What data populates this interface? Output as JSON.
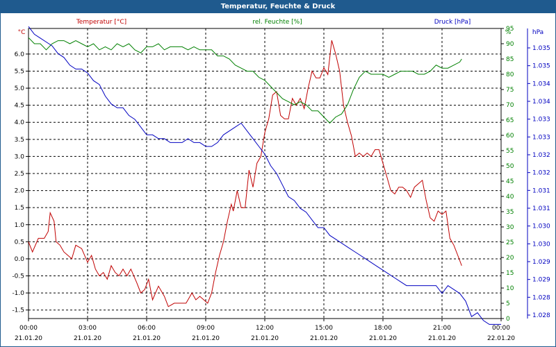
{
  "window": {
    "title": "Temperatur, Feuchte & Druck"
  },
  "chart_data": {
    "type": "line",
    "title": "Temperatur, Feuchte & Druck",
    "grid": true,
    "x_labels": [
      {
        "time": "00:00",
        "date": "21.01.20"
      },
      {
        "time": "03:00",
        "date": "21.01.20"
      },
      {
        "time": "06:00",
        "date": "21.01.20"
      },
      {
        "time": "09:00",
        "date": "21.01.20"
      },
      {
        "time": "12:00",
        "date": "21.01.20"
      },
      {
        "time": "15:00",
        "date": "21.01.20"
      },
      {
        "time": "18:00",
        "date": "21.01.20"
      },
      {
        "time": "21:00",
        "date": "21.01.20"
      },
      {
        "time": "00:00",
        "date": "22.01.20"
      }
    ],
    "x_range_hours": [
      0,
      24
    ],
    "axes": {
      "left": {
        "label": "°C",
        "color": "#c00000",
        "min": -1.75,
        "max": 6.75,
        "ticks": [
          "-1.5",
          "-1.0",
          "-0.5",
          "0.0",
          "0.5",
          "1.0",
          "1.5",
          "2.0",
          "2.5",
          "3.0",
          "3.5",
          "4.0",
          "4.5",
          "5.0",
          "5.5",
          "6.0"
        ]
      },
      "right1": {
        "label": "%",
        "color": "#008000",
        "min": 0,
        "max": 95,
        "ticks": [
          "0",
          "5",
          "10",
          "15",
          "20",
          "25",
          "30",
          "35",
          "40",
          "45",
          "50",
          "55",
          "60",
          "65",
          "70",
          "75",
          "80",
          "85",
          "90",
          "95"
        ]
      },
      "right2": {
        "label": "hPa",
        "color": "#0000c0",
        "min": 1027.75,
        "max": 1035.25,
        "ticks": [
          "1.028",
          "1.028",
          "1.029",
          "1.029",
          "1.030",
          "1.030",
          "1.031",
          "1.031",
          "1.032",
          "1.032",
          "1.033",
          "1.033",
          "1.034",
          "1.034",
          "1.035",
          "1.035"
        ]
      }
    },
    "series": [
      {
        "name": "Temperatur [°C]",
        "axis": "left",
        "color": "#c00000",
        "points": [
          [
            0,
            0.5
          ],
          [
            0.2,
            0.2
          ],
          [
            0.5,
            0.6
          ],
          [
            0.8,
            0.6
          ],
          [
            1.0,
            0.8
          ],
          [
            1.1,
            1.35
          ],
          [
            1.3,
            1.1
          ],
          [
            1.4,
            0.5
          ],
          [
            1.6,
            0.4
          ],
          [
            1.8,
            0.2
          ],
          [
            2.0,
            0.1
          ],
          [
            2.2,
            0.0
          ],
          [
            2.4,
            0.4
          ],
          [
            2.7,
            0.3
          ],
          [
            3.0,
            -0.1
          ],
          [
            3.2,
            0.1
          ],
          [
            3.4,
            -0.3
          ],
          [
            3.6,
            -0.5
          ],
          [
            3.8,
            -0.4
          ],
          [
            4.0,
            -0.6
          ],
          [
            4.2,
            -0.2
          ],
          [
            4.4,
            -0.4
          ],
          [
            4.6,
            -0.5
          ],
          [
            4.8,
            -0.3
          ],
          [
            5.0,
            -0.5
          ],
          [
            5.2,
            -0.3
          ],
          [
            5.5,
            -0.7
          ],
          [
            5.7,
            -1.0
          ],
          [
            5.9,
            -0.9
          ],
          [
            6.1,
            -0.6
          ],
          [
            6.3,
            -1.2
          ],
          [
            6.6,
            -0.8
          ],
          [
            6.9,
            -1.1
          ],
          [
            7.1,
            -1.4
          ],
          [
            7.4,
            -1.3
          ],
          [
            7.7,
            -1.3
          ],
          [
            8.0,
            -1.3
          ],
          [
            8.3,
            -1.0
          ],
          [
            8.5,
            -1.2
          ],
          [
            8.7,
            -1.1
          ],
          [
            8.9,
            -1.2
          ],
          [
            9.1,
            -1.3
          ],
          [
            9.3,
            -1.0
          ],
          [
            9.5,
            -0.4
          ],
          [
            9.7,
            0.1
          ],
          [
            9.9,
            0.5
          ],
          [
            10.1,
            1.1
          ],
          [
            10.3,
            1.6
          ],
          [
            10.4,
            1.4
          ],
          [
            10.6,
            2.0
          ],
          [
            10.8,
            1.5
          ],
          [
            11.0,
            1.5
          ],
          [
            11.2,
            2.6
          ],
          [
            11.4,
            2.1
          ],
          [
            11.6,
            2.8
          ],
          [
            11.8,
            3.0
          ],
          [
            12.0,
            3.7
          ],
          [
            12.2,
            4.1
          ],
          [
            12.4,
            4.8
          ],
          [
            12.6,
            4.9
          ],
          [
            12.8,
            4.2
          ],
          [
            13.0,
            4.1
          ],
          [
            13.2,
            4.1
          ],
          [
            13.4,
            4.7
          ],
          [
            13.6,
            4.5
          ],
          [
            13.8,
            4.7
          ],
          [
            14.0,
            4.4
          ],
          [
            14.2,
            5.0
          ],
          [
            14.4,
            5.5
          ],
          [
            14.6,
            5.3
          ],
          [
            14.8,
            5.3
          ],
          [
            15.0,
            5.6
          ],
          [
            15.2,
            5.4
          ],
          [
            15.4,
            6.4
          ],
          [
            15.6,
            6.0
          ],
          [
            15.8,
            5.5
          ],
          [
            16.0,
            4.5
          ],
          [
            16.2,
            4.0
          ],
          [
            16.4,
            3.6
          ],
          [
            16.6,
            3.0
          ],
          [
            16.8,
            3.1
          ],
          [
            17.0,
            3.0
          ],
          [
            17.2,
            3.1
          ],
          [
            17.4,
            3.0
          ],
          [
            17.6,
            3.2
          ],
          [
            17.8,
            3.2
          ],
          [
            18.0,
            2.8
          ],
          [
            18.2,
            2.4
          ],
          [
            18.4,
            2.0
          ],
          [
            18.6,
            1.9
          ],
          [
            18.8,
            2.1
          ],
          [
            19.0,
            2.1
          ],
          [
            19.2,
            2.0
          ],
          [
            19.4,
            1.8
          ],
          [
            19.6,
            2.1
          ],
          [
            19.8,
            2.2
          ],
          [
            20.0,
            2.3
          ],
          [
            20.2,
            1.7
          ],
          [
            20.4,
            1.2
          ],
          [
            20.6,
            1.1
          ],
          [
            20.8,
            1.4
          ],
          [
            21.0,
            1.3
          ],
          [
            21.2,
            1.4
          ],
          [
            21.4,
            0.6
          ],
          [
            21.6,
            0.4
          ],
          [
            21.8,
            0.1
          ],
          [
            22.0,
            -0.2
          ]
        ]
      },
      {
        "name": "rel. Feuchte [%]",
        "axis": "right1",
        "color": "#008000",
        "points": [
          [
            0,
            92
          ],
          [
            0.3,
            90
          ],
          [
            0.6,
            90
          ],
          [
            0.9,
            88
          ],
          [
            1.2,
            90
          ],
          [
            1.5,
            91
          ],
          [
            1.8,
            91
          ],
          [
            2.1,
            90
          ],
          [
            2.4,
            91
          ],
          [
            2.7,
            90
          ],
          [
            3.0,
            89
          ],
          [
            3.3,
            90
          ],
          [
            3.6,
            88
          ],
          [
            3.9,
            89
          ],
          [
            4.2,
            88
          ],
          [
            4.5,
            90
          ],
          [
            4.8,
            89
          ],
          [
            5.1,
            90
          ],
          [
            5.4,
            88
          ],
          [
            5.7,
            87
          ],
          [
            6.0,
            89
          ],
          [
            6.3,
            89
          ],
          [
            6.6,
            90
          ],
          [
            6.9,
            88
          ],
          [
            7.2,
            89
          ],
          [
            7.5,
            89
          ],
          [
            7.8,
            89
          ],
          [
            8.1,
            88
          ],
          [
            8.4,
            89
          ],
          [
            8.7,
            88
          ],
          [
            9.0,
            88
          ],
          [
            9.3,
            88
          ],
          [
            9.6,
            86
          ],
          [
            9.9,
            86
          ],
          [
            10.2,
            85
          ],
          [
            10.5,
            83
          ],
          [
            10.8,
            82
          ],
          [
            11.1,
            81
          ],
          [
            11.4,
            81
          ],
          [
            11.7,
            79
          ],
          [
            12.0,
            78
          ],
          [
            12.3,
            76
          ],
          [
            12.6,
            74
          ],
          [
            12.9,
            72
          ],
          [
            13.2,
            71
          ],
          [
            13.5,
            70
          ],
          [
            13.8,
            71
          ],
          [
            14.1,
            70
          ],
          [
            14.4,
            68
          ],
          [
            14.7,
            68
          ],
          [
            15.0,
            66
          ],
          [
            15.3,
            64
          ],
          [
            15.6,
            66
          ],
          [
            15.9,
            67
          ],
          [
            16.2,
            70
          ],
          [
            16.5,
            75
          ],
          [
            16.8,
            79
          ],
          [
            17.1,
            81
          ],
          [
            17.4,
            80
          ],
          [
            17.7,
            80
          ],
          [
            18.0,
            80
          ],
          [
            18.3,
            79
          ],
          [
            18.6,
            80
          ],
          [
            18.9,
            81
          ],
          [
            19.2,
            81
          ],
          [
            19.5,
            81
          ],
          [
            19.8,
            80
          ],
          [
            20.1,
            80
          ],
          [
            20.4,
            81
          ],
          [
            20.7,
            83
          ],
          [
            21.0,
            82
          ],
          [
            21.3,
            82
          ],
          [
            21.6,
            83
          ],
          [
            21.9,
            84
          ],
          [
            22.0,
            85
          ]
        ]
      },
      {
        "name": "Druck [hPa]",
        "axis": "right2",
        "color": "#0000c0",
        "points": [
          [
            0,
            1035.3
          ],
          [
            0.3,
            1035.1
          ],
          [
            0.6,
            1035.0
          ],
          [
            0.9,
            1034.9
          ],
          [
            1.2,
            1034.8
          ],
          [
            1.5,
            1034.6
          ],
          [
            1.8,
            1034.5
          ],
          [
            2.1,
            1034.3
          ],
          [
            2.4,
            1034.2
          ],
          [
            2.7,
            1034.2
          ],
          [
            3.0,
            1034.1
          ],
          [
            3.3,
            1033.9
          ],
          [
            3.6,
            1033.8
          ],
          [
            3.9,
            1033.5
          ],
          [
            4.2,
            1033.3
          ],
          [
            4.5,
            1033.2
          ],
          [
            4.8,
            1033.2
          ],
          [
            5.1,
            1033.0
          ],
          [
            5.4,
            1032.9
          ],
          [
            5.7,
            1032.7
          ],
          [
            6.0,
            1032.5
          ],
          [
            6.3,
            1032.5
          ],
          [
            6.6,
            1032.4
          ],
          [
            6.9,
            1032.4
          ],
          [
            7.2,
            1032.3
          ],
          [
            7.5,
            1032.3
          ],
          [
            7.8,
            1032.3
          ],
          [
            8.1,
            1032.4
          ],
          [
            8.4,
            1032.3
          ],
          [
            8.7,
            1032.3
          ],
          [
            9.0,
            1032.2
          ],
          [
            9.3,
            1032.2
          ],
          [
            9.6,
            1032.3
          ],
          [
            9.9,
            1032.5
          ],
          [
            10.2,
            1032.6
          ],
          [
            10.5,
            1032.7
          ],
          [
            10.8,
            1032.8
          ],
          [
            11.1,
            1032.6
          ],
          [
            11.4,
            1032.4
          ],
          [
            11.7,
            1032.2
          ],
          [
            12.0,
            1032.0
          ],
          [
            12.3,
            1031.7
          ],
          [
            12.6,
            1031.5
          ],
          [
            12.9,
            1031.2
          ],
          [
            13.2,
            1030.9
          ],
          [
            13.5,
            1030.8
          ],
          [
            13.8,
            1030.6
          ],
          [
            14.1,
            1030.5
          ],
          [
            14.4,
            1030.3
          ],
          [
            14.7,
            1030.1
          ],
          [
            15.0,
            1030.1
          ],
          [
            15.3,
            1029.9
          ],
          [
            15.6,
            1029.8
          ],
          [
            15.9,
            1029.7
          ],
          [
            16.2,
            1029.6
          ],
          [
            16.5,
            1029.5
          ],
          [
            16.8,
            1029.4
          ],
          [
            17.1,
            1029.3
          ],
          [
            17.4,
            1029.2
          ],
          [
            17.7,
            1029.1
          ],
          [
            18.0,
            1029.0
          ],
          [
            18.3,
            1028.9
          ],
          [
            18.6,
            1028.8
          ],
          [
            18.9,
            1028.7
          ],
          [
            19.2,
            1028.6
          ],
          [
            19.5,
            1028.6
          ],
          [
            19.8,
            1028.6
          ],
          [
            20.1,
            1028.6
          ],
          [
            20.4,
            1028.6
          ],
          [
            20.7,
            1028.6
          ],
          [
            21.0,
            1028.4
          ],
          [
            21.3,
            1028.6
          ],
          [
            21.6,
            1028.5
          ],
          [
            21.9,
            1028.4
          ],
          [
            22.2,
            1028.2
          ],
          [
            22.5,
            1027.8
          ],
          [
            22.8,
            1027.9
          ],
          [
            23.1,
            1027.7
          ],
          [
            23.4,
            1027.6
          ],
          [
            23.7,
            1027.6
          ],
          [
            24.0,
            1027.6
          ]
        ]
      }
    ]
  }
}
